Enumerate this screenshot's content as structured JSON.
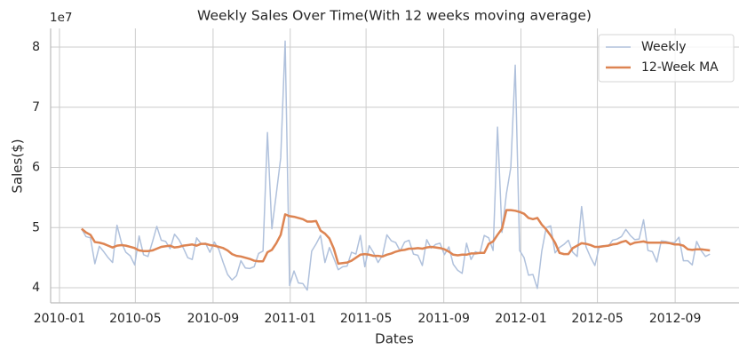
{
  "chart_data": {
    "type": "line",
    "title": "Weekly Sales Over Time(With 12 weeks moving average)",
    "x_label": "Dates",
    "y_label": "Sales($)",
    "y_offset_label": "1e7",
    "grid": true,
    "legend_position": "upper right",
    "x": [
      "2010-02-05",
      "2010-02-12",
      "2010-02-19",
      "2010-02-26",
      "2010-03-05",
      "2010-03-12",
      "2010-03-19",
      "2010-03-26",
      "2010-04-02",
      "2010-04-09",
      "2010-04-16",
      "2010-04-23",
      "2010-04-30",
      "2010-05-07",
      "2010-05-14",
      "2010-05-21",
      "2010-05-28",
      "2010-06-04",
      "2010-06-11",
      "2010-06-18",
      "2010-06-25",
      "2010-07-02",
      "2010-07-09",
      "2010-07-16",
      "2010-07-23",
      "2010-07-30",
      "2010-08-06",
      "2010-08-13",
      "2010-08-20",
      "2010-08-27",
      "2010-09-03",
      "2010-09-10",
      "2010-09-17",
      "2010-09-24",
      "2010-10-01",
      "2010-10-08",
      "2010-10-15",
      "2010-10-22",
      "2010-10-29",
      "2010-11-05",
      "2010-11-12",
      "2010-11-19",
      "2010-11-26",
      "2010-12-03",
      "2010-12-10",
      "2010-12-17",
      "2010-12-24",
      "2010-12-31",
      "2011-01-07",
      "2011-01-14",
      "2011-01-21",
      "2011-01-28",
      "2011-02-04",
      "2011-02-11",
      "2011-02-18",
      "2011-02-25",
      "2011-03-04",
      "2011-03-11",
      "2011-03-18",
      "2011-03-25",
      "2011-04-01",
      "2011-04-08",
      "2011-04-15",
      "2011-04-22",
      "2011-04-29",
      "2011-05-06",
      "2011-05-13",
      "2011-05-20",
      "2011-05-27",
      "2011-06-03",
      "2011-06-10",
      "2011-06-17",
      "2011-06-24",
      "2011-07-01",
      "2011-07-08",
      "2011-07-15",
      "2011-07-22",
      "2011-07-29",
      "2011-08-05",
      "2011-08-12",
      "2011-08-19",
      "2011-08-26",
      "2011-09-02",
      "2011-09-09",
      "2011-09-16",
      "2011-09-23",
      "2011-09-30",
      "2011-10-07",
      "2011-10-14",
      "2011-10-21",
      "2011-10-28",
      "2011-11-04",
      "2011-11-11",
      "2011-11-18",
      "2011-11-25",
      "2011-12-02",
      "2011-12-09",
      "2011-12-16",
      "2011-12-23",
      "2011-12-30",
      "2012-01-06",
      "2012-01-13",
      "2012-01-20",
      "2012-01-27",
      "2012-02-03",
      "2012-02-10",
      "2012-02-17",
      "2012-02-24",
      "2012-03-02",
      "2012-03-09",
      "2012-03-16",
      "2012-03-23",
      "2012-03-30",
      "2012-04-06",
      "2012-04-13",
      "2012-04-20",
      "2012-04-27",
      "2012-05-04",
      "2012-05-11",
      "2012-05-18",
      "2012-05-25",
      "2012-06-01",
      "2012-06-08",
      "2012-06-15",
      "2012-06-22",
      "2012-06-29",
      "2012-07-06",
      "2012-07-13",
      "2012-07-20",
      "2012-07-27",
      "2012-08-03",
      "2012-08-10",
      "2012-08-17",
      "2012-08-24",
      "2012-08-31",
      "2012-09-07",
      "2012-09-14",
      "2012-09-21",
      "2012-09-28",
      "2012-10-05",
      "2012-10-12",
      "2012-10-19",
      "2012-10-26"
    ],
    "series": [
      {
        "name": "Weekly",
        "color": "#b0c1dc",
        "width": 1.5,
        "values": [
          4.98,
          4.85,
          4.83,
          4.4,
          4.69,
          4.6,
          4.5,
          4.42,
          5.04,
          4.75,
          4.59,
          4.53,
          4.38,
          4.86,
          4.55,
          4.52,
          4.76,
          5.02,
          4.79,
          4.77,
          4.65,
          4.89,
          4.8,
          4.66,
          4.5,
          4.47,
          4.83,
          4.73,
          4.74,
          4.59,
          4.76,
          4.64,
          4.42,
          4.22,
          4.13,
          4.2,
          4.45,
          4.33,
          4.32,
          4.35,
          4.57,
          4.61,
          6.58,
          4.98,
          5.56,
          6.16,
          8.1,
          4.04,
          4.28,
          4.08,
          4.07,
          3.96,
          4.61,
          4.73,
          4.87,
          4.42,
          4.67,
          4.49,
          4.3,
          4.35,
          4.36,
          4.59,
          4.56,
          4.87,
          4.35,
          4.7,
          4.58,
          4.42,
          4.54,
          4.88,
          4.78,
          4.75,
          4.61,
          4.76,
          4.79,
          4.56,
          4.54,
          4.37,
          4.8,
          4.66,
          4.72,
          4.74,
          4.55,
          4.68,
          4.39,
          4.29,
          4.24,
          4.74,
          4.47,
          4.6,
          4.57,
          4.87,
          4.83,
          4.62,
          6.67,
          4.92,
          5.56,
          6.0,
          7.7,
          4.62,
          4.5,
          4.21,
          4.22,
          3.99,
          4.61,
          5.0,
          5.03,
          4.58,
          4.67,
          4.72,
          4.79,
          4.59,
          4.52,
          5.35,
          4.68,
          4.51,
          4.37,
          4.69,
          4.7,
          4.69,
          4.79,
          4.81,
          4.85,
          4.97,
          4.87,
          4.8,
          4.81,
          5.13,
          4.62,
          4.6,
          4.43,
          4.78,
          4.77,
          4.75,
          4.75,
          4.84,
          4.45,
          4.45,
          4.38,
          4.77,
          4.62,
          4.52,
          4.56
        ]
      },
      {
        "name": "12-Week MA",
        "color": "#dd8452",
        "width": 2.5,
        "values": [
          4.98,
          4.92,
          4.88,
          4.76,
          4.75,
          4.73,
          4.7,
          4.67,
          4.7,
          4.71,
          4.7,
          4.68,
          4.66,
          4.62,
          4.61,
          4.61,
          4.62,
          4.65,
          4.68,
          4.69,
          4.7,
          4.67,
          4.68,
          4.7,
          4.71,
          4.72,
          4.7,
          4.73,
          4.73,
          4.71,
          4.7,
          4.68,
          4.66,
          4.62,
          4.56,
          4.53,
          4.52,
          4.5,
          4.48,
          4.45,
          4.44,
          4.44,
          4.59,
          4.63,
          4.74,
          4.88,
          5.22,
          5.19,
          5.18,
          5.16,
          5.14,
          5.1,
          5.1,
          5.11,
          4.95,
          4.9,
          4.82,
          4.65,
          4.4,
          4.41,
          4.42,
          4.45,
          4.5,
          4.55,
          4.56,
          4.55,
          4.53,
          4.53,
          4.52,
          4.55,
          4.57,
          4.6,
          4.62,
          4.63,
          4.65,
          4.65,
          4.66,
          4.65,
          4.67,
          4.68,
          4.67,
          4.66,
          4.64,
          4.6,
          4.55,
          4.54,
          4.55,
          4.55,
          4.57,
          4.57,
          4.58,
          4.58,
          4.73,
          4.77,
          4.88,
          4.98,
          5.29,
          5.29,
          5.28,
          5.26,
          5.23,
          5.16,
          5.14,
          5.16,
          5.05,
          4.97,
          4.87,
          4.75,
          4.58,
          4.56,
          4.56,
          4.66,
          4.7,
          4.74,
          4.73,
          4.71,
          4.68,
          4.68,
          4.69,
          4.7,
          4.72,
          4.73,
          4.76,
          4.78,
          4.72,
          4.75,
          4.76,
          4.77,
          4.75,
          4.75,
          4.75,
          4.75,
          4.75,
          4.74,
          4.72,
          4.72,
          4.7,
          4.64,
          4.63,
          4.64,
          4.64,
          4.63,
          4.62
        ]
      }
    ],
    "xlim": [
      "2009-12-18",
      "2012-12-11"
    ],
    "xticks": [
      {
        "value": "2010-01-01",
        "label": "2010-01"
      },
      {
        "value": "2010-05-01",
        "label": "2010-05"
      },
      {
        "value": "2010-09-01",
        "label": "2010-09"
      },
      {
        "value": "2011-01-01",
        "label": "2011-01"
      },
      {
        "value": "2011-05-01",
        "label": "2011-05"
      },
      {
        "value": "2011-09-01",
        "label": "2011-09"
      },
      {
        "value": "2012-01-01",
        "label": "2012-01"
      },
      {
        "value": "2012-05-01",
        "label": "2012-05"
      },
      {
        "value": "2012-09-01",
        "label": "2012-09"
      }
    ],
    "ylim": [
      3.75,
      8.31
    ],
    "yticks": [
      4,
      5,
      6,
      7,
      8
    ]
  }
}
